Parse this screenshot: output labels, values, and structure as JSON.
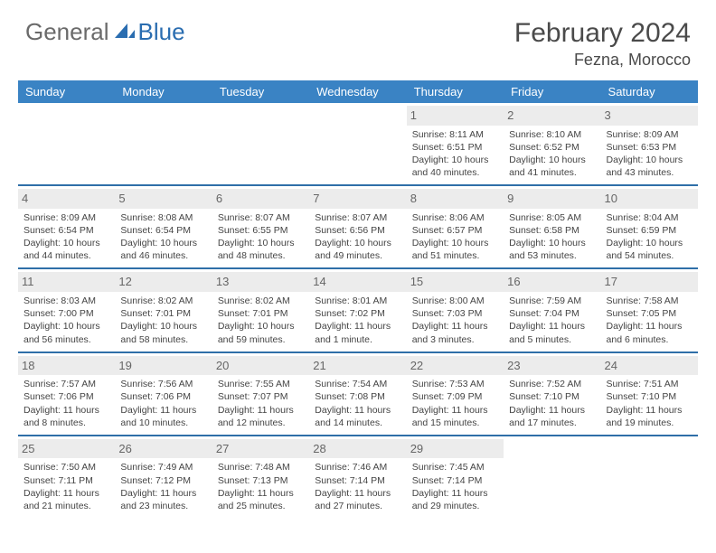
{
  "brand": {
    "general": "General",
    "blue": "Blue"
  },
  "title": "February 2024",
  "location": "Fezna, Morocco",
  "colors": {
    "header_bg": "#3a83c4",
    "header_text": "#ffffff",
    "rule": "#2f6fa8",
    "daynum_bg": "#ececec",
    "text": "#444444",
    "logo_gray": "#6a6a6a",
    "logo_blue": "#2a6db0"
  },
  "weekdays": [
    "Sunday",
    "Monday",
    "Tuesday",
    "Wednesday",
    "Thursday",
    "Friday",
    "Saturday"
  ],
  "weeks": [
    [
      null,
      null,
      null,
      null,
      {
        "n": "1",
        "sr": "8:11 AM",
        "ss": "6:51 PM",
        "dl": "10 hours and 40 minutes."
      },
      {
        "n": "2",
        "sr": "8:10 AM",
        "ss": "6:52 PM",
        "dl": "10 hours and 41 minutes."
      },
      {
        "n": "3",
        "sr": "8:09 AM",
        "ss": "6:53 PM",
        "dl": "10 hours and 43 minutes."
      }
    ],
    [
      {
        "n": "4",
        "sr": "8:09 AM",
        "ss": "6:54 PM",
        "dl": "10 hours and 44 minutes."
      },
      {
        "n": "5",
        "sr": "8:08 AM",
        "ss": "6:54 PM",
        "dl": "10 hours and 46 minutes."
      },
      {
        "n": "6",
        "sr": "8:07 AM",
        "ss": "6:55 PM",
        "dl": "10 hours and 48 minutes."
      },
      {
        "n": "7",
        "sr": "8:07 AM",
        "ss": "6:56 PM",
        "dl": "10 hours and 49 minutes."
      },
      {
        "n": "8",
        "sr": "8:06 AM",
        "ss": "6:57 PM",
        "dl": "10 hours and 51 minutes."
      },
      {
        "n": "9",
        "sr": "8:05 AM",
        "ss": "6:58 PM",
        "dl": "10 hours and 53 minutes."
      },
      {
        "n": "10",
        "sr": "8:04 AM",
        "ss": "6:59 PM",
        "dl": "10 hours and 54 minutes."
      }
    ],
    [
      {
        "n": "11",
        "sr": "8:03 AM",
        "ss": "7:00 PM",
        "dl": "10 hours and 56 minutes."
      },
      {
        "n": "12",
        "sr": "8:02 AM",
        "ss": "7:01 PM",
        "dl": "10 hours and 58 minutes."
      },
      {
        "n": "13",
        "sr": "8:02 AM",
        "ss": "7:01 PM",
        "dl": "10 hours and 59 minutes."
      },
      {
        "n": "14",
        "sr": "8:01 AM",
        "ss": "7:02 PM",
        "dl": "11 hours and 1 minute."
      },
      {
        "n": "15",
        "sr": "8:00 AM",
        "ss": "7:03 PM",
        "dl": "11 hours and 3 minutes."
      },
      {
        "n": "16",
        "sr": "7:59 AM",
        "ss": "7:04 PM",
        "dl": "11 hours and 5 minutes."
      },
      {
        "n": "17",
        "sr": "7:58 AM",
        "ss": "7:05 PM",
        "dl": "11 hours and 6 minutes."
      }
    ],
    [
      {
        "n": "18",
        "sr": "7:57 AM",
        "ss": "7:06 PM",
        "dl": "11 hours and 8 minutes."
      },
      {
        "n": "19",
        "sr": "7:56 AM",
        "ss": "7:06 PM",
        "dl": "11 hours and 10 minutes."
      },
      {
        "n": "20",
        "sr": "7:55 AM",
        "ss": "7:07 PM",
        "dl": "11 hours and 12 minutes."
      },
      {
        "n": "21",
        "sr": "7:54 AM",
        "ss": "7:08 PM",
        "dl": "11 hours and 14 minutes."
      },
      {
        "n": "22",
        "sr": "7:53 AM",
        "ss": "7:09 PM",
        "dl": "11 hours and 15 minutes."
      },
      {
        "n": "23",
        "sr": "7:52 AM",
        "ss": "7:10 PM",
        "dl": "11 hours and 17 minutes."
      },
      {
        "n": "24",
        "sr": "7:51 AM",
        "ss": "7:10 PM",
        "dl": "11 hours and 19 minutes."
      }
    ],
    [
      {
        "n": "25",
        "sr": "7:50 AM",
        "ss": "7:11 PM",
        "dl": "11 hours and 21 minutes."
      },
      {
        "n": "26",
        "sr": "7:49 AM",
        "ss": "7:12 PM",
        "dl": "11 hours and 23 minutes."
      },
      {
        "n": "27",
        "sr": "7:48 AM",
        "ss": "7:13 PM",
        "dl": "11 hours and 25 minutes."
      },
      {
        "n": "28",
        "sr": "7:46 AM",
        "ss": "7:14 PM",
        "dl": "11 hours and 27 minutes."
      },
      {
        "n": "29",
        "sr": "7:45 AM",
        "ss": "7:14 PM",
        "dl": "11 hours and 29 minutes."
      },
      null,
      null
    ]
  ],
  "labels": {
    "sunrise": "Sunrise: ",
    "sunset": "Sunset: ",
    "daylight": "Daylight: "
  }
}
